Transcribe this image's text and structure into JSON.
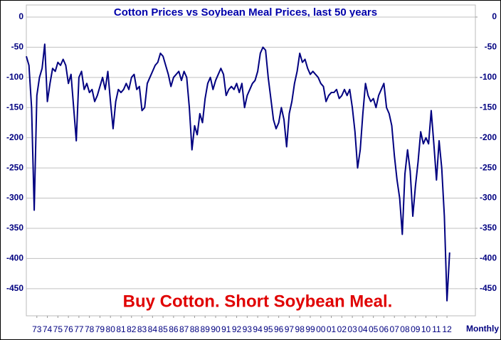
{
  "chart_data": {
    "type": "line",
    "title": "Cotton Prices vs Soybean Meal Prices, last 50 years",
    "annotation": "Buy Cotton. Short Soybean Meal.",
    "x_label": "Monthly",
    "xlim": [
      1972,
      2014.7
    ],
    "ylim": [
      -495,
      20
    ],
    "y2lim": [
      -495,
      20
    ],
    "yticks": [
      0,
      -50,
      -100,
      -150,
      -200,
      -250,
      -300,
      -350,
      -400,
      -450
    ],
    "y2ticks": [
      0,
      -50,
      -100,
      -150,
      -200,
      -250,
      -300,
      -350,
      -400,
      -450
    ],
    "grid": true,
    "xticks": [
      {
        "value": 1973,
        "label": "73"
      },
      {
        "value": 1974,
        "label": "74"
      },
      {
        "value": 1975,
        "label": "75"
      },
      {
        "value": 1976,
        "label": "76"
      },
      {
        "value": 1977,
        "label": "77"
      },
      {
        "value": 1978,
        "label": "78"
      },
      {
        "value": 1979,
        "label": "79"
      },
      {
        "value": 1980,
        "label": "80"
      },
      {
        "value": 1981,
        "label": "81"
      },
      {
        "value": 1982,
        "label": "82"
      },
      {
        "value": 1983,
        "label": "83"
      },
      {
        "value": 1984,
        "label": "84"
      },
      {
        "value": 1985,
        "label": "85"
      },
      {
        "value": 1986,
        "label": "86"
      },
      {
        "value": 1987,
        "label": "87"
      },
      {
        "value": 1988,
        "label": "88"
      },
      {
        "value": 1989,
        "label": "89"
      },
      {
        "value": 1990,
        "label": "90"
      },
      {
        "value": 1991,
        "label": "91"
      },
      {
        "value": 1992,
        "label": "92"
      },
      {
        "value": 1993,
        "label": "93"
      },
      {
        "value": 1994,
        "label": "94"
      },
      {
        "value": 1995,
        "label": "95"
      },
      {
        "value": 1996,
        "label": "96"
      },
      {
        "value": 1997,
        "label": "97"
      },
      {
        "value": 1998,
        "label": "98"
      },
      {
        "value": 1999,
        "label": "99"
      },
      {
        "value": 2000,
        "label": "00"
      },
      {
        "value": 2001,
        "label": "01"
      },
      {
        "value": 2002,
        "label": "02"
      },
      {
        "value": 2003,
        "label": "03"
      },
      {
        "value": 2004,
        "label": "04"
      },
      {
        "value": 2005,
        "label": "05"
      },
      {
        "value": 2006,
        "label": "06"
      },
      {
        "value": 2007,
        "label": "07"
      },
      {
        "value": 2008,
        "label": "08"
      },
      {
        "value": 2009,
        "label": "09"
      },
      {
        "value": 2010,
        "label": "10"
      },
      {
        "value": 2011,
        "label": "11"
      },
      {
        "value": 2012,
        "label": "12"
      }
    ],
    "x": [
      1972,
      1972.25,
      1972.5,
      1972.75,
      1973,
      1973.25,
      1973.5,
      1973.75,
      1974,
      1974.25,
      1974.5,
      1974.75,
      1975,
      1975.25,
      1975.5,
      1975.75,
      1976,
      1976.25,
      1976.5,
      1976.75,
      1977,
      1977.25,
      1977.5,
      1977.75,
      1978,
      1978.25,
      1978.5,
      1978.75,
      1979,
      1979.25,
      1979.5,
      1979.75,
      1980,
      1980.25,
      1980.5,
      1980.75,
      1981,
      1981.25,
      1981.5,
      1981.75,
      1982,
      1982.25,
      1982.5,
      1982.75,
      1983,
      1983.25,
      1983.5,
      1983.75,
      1984,
      1984.25,
      1984.5,
      1984.75,
      1985,
      1985.25,
      1985.5,
      1985.75,
      1986,
      1986.25,
      1986.5,
      1986.75,
      1987,
      1987.25,
      1987.5,
      1987.75,
      1988,
      1988.25,
      1988.5,
      1988.75,
      1989,
      1989.25,
      1989.5,
      1989.75,
      1990,
      1990.25,
      1990.5,
      1990.75,
      1991,
      1991.25,
      1991.5,
      1991.75,
      1992,
      1992.25,
      1992.5,
      1992.75,
      1993,
      1993.25,
      1993.5,
      1993.75,
      1994,
      1994.25,
      1994.5,
      1994.75,
      1995,
      1995.25,
      1995.5,
      1995.75,
      1996,
      1996.25,
      1996.5,
      1996.75,
      1997,
      1997.25,
      1997.5,
      1997.75,
      1998,
      1998.25,
      1998.5,
      1998.75,
      1999,
      1999.25,
      1999.5,
      1999.75,
      2000,
      2000.25,
      2000.5,
      2000.75,
      2001,
      2001.25,
      2001.5,
      2001.75,
      2002,
      2002.25,
      2002.5,
      2002.75,
      2003,
      2003.25,
      2003.5,
      2003.75,
      2004,
      2004.25,
      2004.5,
      2004.75,
      2005,
      2005.25,
      2005.5,
      2005.75,
      2006,
      2006.25,
      2006.5,
      2006.75,
      2007,
      2007.25,
      2007.5,
      2007.75,
      2008,
      2008.25,
      2008.5,
      2008.75,
      2009,
      2009.25,
      2009.5,
      2009.75,
      2010,
      2010.25,
      2010.5,
      2010.75,
      2011,
      2011.25,
      2011.5,
      2011.75,
      2012,
      2012.25
    ],
    "series": [
      {
        "color": "#000080",
        "values": [
          -65,
          -80,
          -150,
          -320,
          -130,
          -100,
          -85,
          -45,
          -140,
          -110,
          -85,
          -90,
          -75,
          -80,
          -70,
          -80,
          -110,
          -95,
          -150,
          -205,
          -100,
          -90,
          -120,
          -110,
          -125,
          -120,
          -140,
          -130,
          -115,
          -100,
          -120,
          -90,
          -140,
          -185,
          -140,
          -120,
          -125,
          -120,
          -110,
          -120,
          -100,
          -95,
          -120,
          -115,
          -155,
          -150,
          -110,
          -100,
          -90,
          -80,
          -75,
          -60,
          -65,
          -80,
          -95,
          -115,
          -100,
          -95,
          -90,
          -105,
          -90,
          -100,
          -150,
          -220,
          -180,
          -195,
          -160,
          -175,
          -135,
          -110,
          -100,
          -120,
          -105,
          -95,
          -85,
          -95,
          -130,
          -120,
          -115,
          -120,
          -110,
          -125,
          -110,
          -150,
          -130,
          -120,
          -110,
          -105,
          -90,
          -60,
          -50,
          -55,
          -100,
          -135,
          -170,
          -185,
          -175,
          -150,
          -170,
          -215,
          -160,
          -140,
          -110,
          -90,
          -60,
          -75,
          -70,
          -85,
          -95,
          -90,
          -95,
          -100,
          -110,
          -115,
          -140,
          -130,
          -125,
          -125,
          -120,
          -135,
          -130,
          -120,
          -130,
          -120,
          -150,
          -190,
          -250,
          -220,
          -160,
          -110,
          -130,
          -140,
          -135,
          -150,
          -130,
          -120,
          -110,
          -150,
          -160,
          -180,
          -230,
          -270,
          -300,
          -360,
          -260,
          -220,
          -255,
          -330,
          -280,
          -240,
          -190,
          -210,
          -200,
          -210,
          -155,
          -210,
          -270,
          -205,
          -250,
          -330,
          -470,
          -390
        ]
      }
    ]
  }
}
